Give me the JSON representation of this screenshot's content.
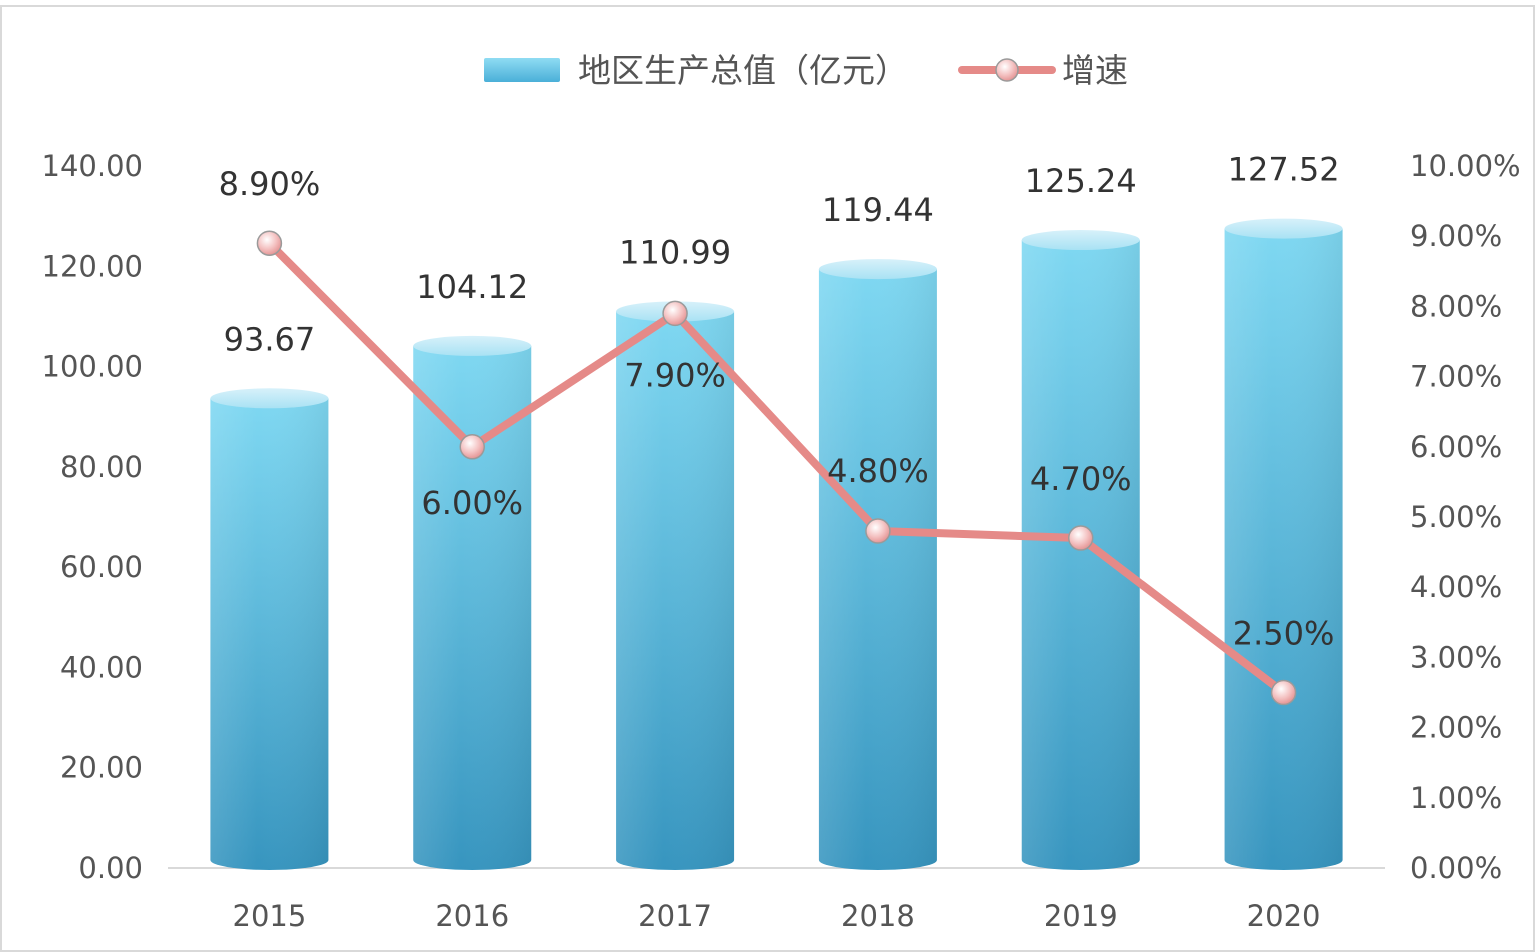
{
  "chart_data": {
    "type": "bar",
    "categories": [
      "2015",
      "2016",
      "2017",
      "2018",
      "2019",
      "2020"
    ],
    "series": [
      {
        "name": "地区生产总值（亿元）",
        "type": "bar",
        "axis": "left",
        "values": [
          93.67,
          104.12,
          110.99,
          119.44,
          125.24,
          127.52
        ],
        "labels": [
          "93.67",
          "104.12",
          "110.99",
          "119.44",
          "125.24",
          "127.52"
        ],
        "color": "#5bc3e6"
      },
      {
        "name": "增速",
        "type": "line",
        "axis": "right",
        "values": [
          8.9,
          6.0,
          7.9,
          4.8,
          4.7,
          2.5
        ],
        "labels": [
          "8.90%",
          "6.00%",
          "7.90%",
          "4.80%",
          "4.70%",
          "2.50%"
        ],
        "color": "#e58a88"
      }
    ],
    "ylim": [
      0,
      140
    ],
    "y_ticks": [
      "0.00",
      "20.00",
      "40.00",
      "60.00",
      "80.00",
      "100.00",
      "120.00",
      "140.00"
    ],
    "y2lim": [
      0,
      10
    ],
    "y2_ticks": [
      "0.00%",
      "1.00%",
      "2.00%",
      "3.00%",
      "4.00%",
      "5.00%",
      "6.00%",
      "7.00%",
      "8.00%",
      "9.00%",
      "10.00%"
    ],
    "grid": false,
    "legend_position": "top-center"
  }
}
